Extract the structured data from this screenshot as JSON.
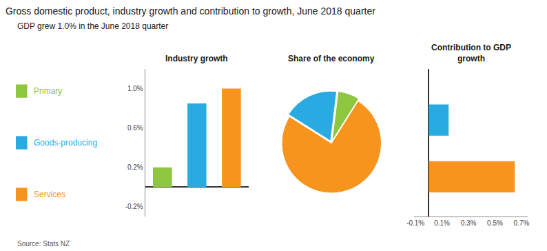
{
  "title": "Gross domestic product, industry growth and contribution to growth, June 2018 quarter",
  "subtitle": "GDP grew 1.0% in the June 2018 quarter",
  "source": "Source: Stats NZ",
  "chart_data": [
    {
      "type": "bar",
      "title": "Industry growth",
      "categories": [
        "Primary",
        "Goods-producing",
        "Services"
      ],
      "values": [
        0.002,
        0.0085,
        0.01
      ],
      "colors": [
        "#8DC63F",
        "#29ABE2",
        "#F7941D"
      ],
      "ylim": [
        -0.003,
        0.012
      ],
      "yticks": [
        {
          "value": -0.002,
          "label": "-0.2%"
        },
        {
          "value": 0.002,
          "label": "0.2%"
        },
        {
          "value": 0.006,
          "label": "0.6%"
        },
        {
          "value": 0.01,
          "label": "1.0%"
        }
      ],
      "grid": false,
      "tick_labels": "y"
    },
    {
      "type": "pie",
      "title": "Share of the economy",
      "categories": [
        "Primary",
        "Goods-producing",
        "Services"
      ],
      "values": [
        7,
        18,
        75
      ],
      "colors": [
        "#8DC63F",
        "#29ABE2",
        "#F7941D"
      ]
    },
    {
      "type": "bar",
      "orientation": "horizontal",
      "title": "Contribution to GDP\ngrowth",
      "categories": [
        "Goods-producing",
        "Services"
      ],
      "values": [
        0.0015,
        0.0065
      ],
      "colors": [
        "#29ABE2",
        "#F7941D"
      ],
      "xlim": [
        -0.0011,
        0.0075
      ],
      "xticks": [
        {
          "value": -0.001,
          "label": "-0.1%"
        },
        {
          "value": 0.001,
          "label": "0.1%"
        },
        {
          "value": 0.003,
          "label": "0.3%"
        },
        {
          "value": 0.005,
          "label": "0.5%"
        },
        {
          "value": 0.007,
          "label": "0.7%"
        }
      ],
      "grid": false,
      "tick_labels": "x"
    }
  ]
}
